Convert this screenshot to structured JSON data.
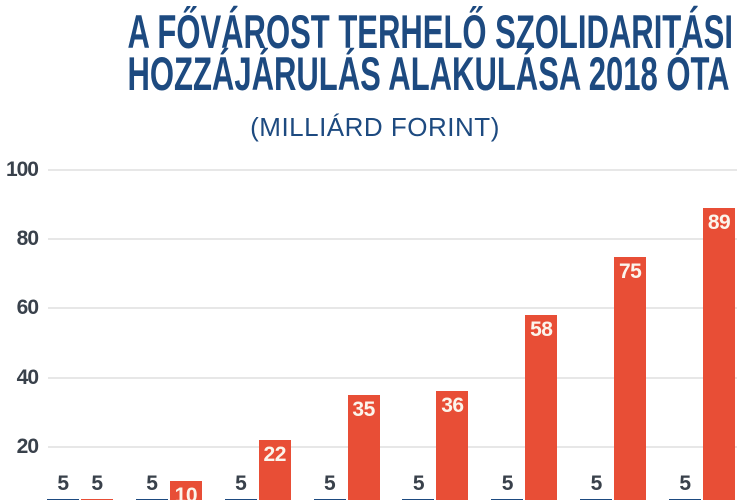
{
  "title": {
    "line1": "A FŐVÁROST TERHELŐ SZOLIDARITÁSI",
    "line2": "HOZZÁJÁRULÁS ALAKULÁSA 2018 ÓTA",
    "subtitle": "(MILLIÁRD FORINT)"
  },
  "colors": {
    "title_navy": "#1d4a80",
    "bar_blue": "#1d4a80",
    "bar_orange": "#e84e36",
    "axis_text": "#39414b",
    "gridline": "#e7e7e7",
    "bar_label_light": "#fbf5ec"
  },
  "chart_data": {
    "type": "bar",
    "title": "A FŐVÁROST TERHELŐ SZOLIDARITÁSI HOZZÁJÁRULÁS ALAKULÁSA 2018 ÓTA",
    "subtitle": "(MILLIÁRD FORINT)",
    "ylim": [
      0,
      100
    ],
    "yticks": [
      20,
      40,
      60,
      80,
      100
    ],
    "grid": true,
    "legend_position": "none",
    "series": [
      {
        "name": "left-blue-bars",
        "color": "#1d4a80",
        "values": [
          5,
          5,
          5,
          5,
          5,
          5,
          5,
          5
        ]
      },
      {
        "name": "right-orange-bars",
        "color": "#e84e36",
        "values": [
          5,
          10,
          22,
          35,
          36,
          58,
          75,
          89
        ]
      }
    ]
  }
}
